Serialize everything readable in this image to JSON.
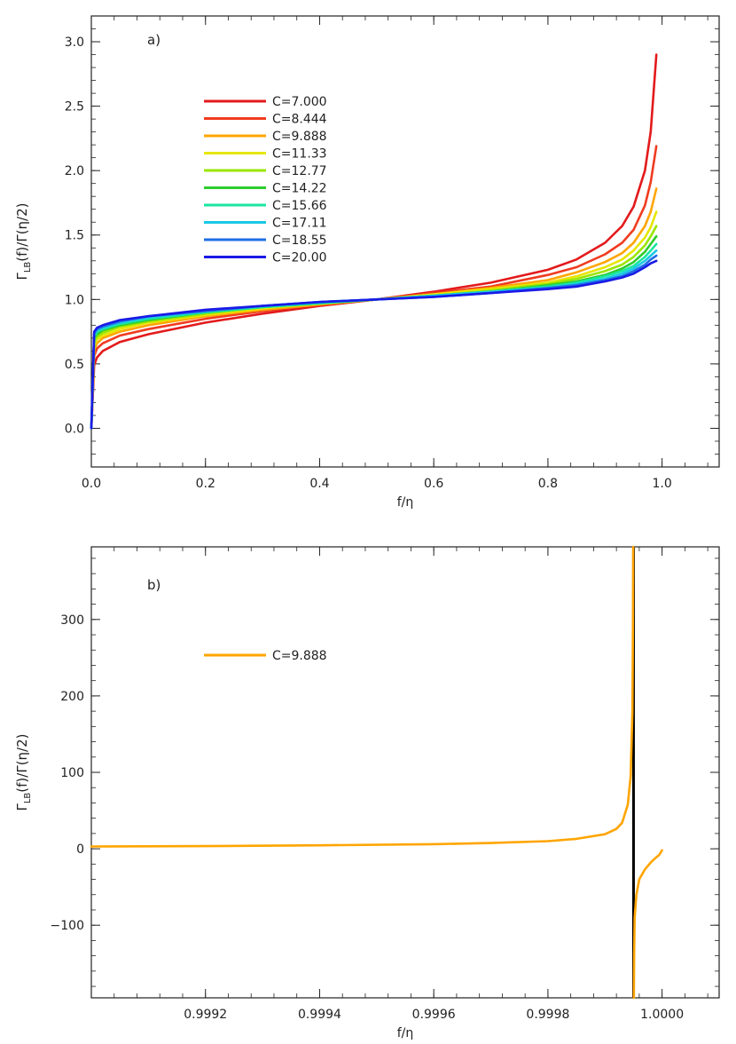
{
  "chart_data": [
    {
      "type": "line",
      "panel_label": "a)",
      "xlabel": "f/η",
      "ylabel_main": "Γ",
      "ylabel_sub": "LB",
      "ylabel_rest": "(f)/Γ(η/2)",
      "xlim": [
        0.0,
        1.1
      ],
      "ylim": [
        -0.3,
        3.2
      ],
      "x_ticks": [
        0.0,
        0.2,
        0.4,
        0.6,
        0.8,
        1.0
      ],
      "x_tick_labels": [
        "0.0",
        "0.2",
        "0.4",
        "0.6",
        "0.8",
        "1.0"
      ],
      "y_ticks": [
        0.0,
        0.5,
        1.0,
        1.5,
        2.0,
        2.5,
        3.0
      ],
      "y_tick_labels": [
        "0.0",
        "0.5",
        "1.0",
        "1.5",
        "2.0",
        "2.5",
        "3.0"
      ],
      "grid": false,
      "legend_position": "upper-left",
      "series": [
        {
          "name": "C=7.000",
          "color": "#e31a1c",
          "x": [
            0.0,
            0.005,
            0.01,
            0.02,
            0.05,
            0.1,
            0.2,
            0.3,
            0.4,
            0.5,
            0.6,
            0.7,
            0.8,
            0.85,
            0.9,
            0.93,
            0.95,
            0.97,
            0.98,
            0.99
          ],
          "values": [
            0.0,
            0.49,
            0.55,
            0.6,
            0.67,
            0.73,
            0.82,
            0.89,
            0.95,
            1.0,
            1.06,
            1.13,
            1.23,
            1.31,
            1.44,
            1.57,
            1.72,
            2.0,
            2.3,
            2.9
          ]
        },
        {
          "name": "C=8.444",
          "color": "#f03b20",
          "x": [
            0.0,
            0.005,
            0.01,
            0.02,
            0.05,
            0.1,
            0.2,
            0.3,
            0.4,
            0.5,
            0.6,
            0.7,
            0.8,
            0.85,
            0.9,
            0.93,
            0.95,
            0.97,
            0.98,
            0.99
          ],
          "values": [
            0.0,
            0.56,
            0.62,
            0.66,
            0.72,
            0.77,
            0.85,
            0.91,
            0.96,
            1.0,
            1.05,
            1.1,
            1.19,
            1.25,
            1.35,
            1.44,
            1.54,
            1.73,
            1.91,
            2.19
          ]
        },
        {
          "name": "C=9.888",
          "color": "#ffa500",
          "x": [
            0.0,
            0.005,
            0.01,
            0.02,
            0.05,
            0.1,
            0.2,
            0.3,
            0.4,
            0.5,
            0.6,
            0.7,
            0.8,
            0.85,
            0.9,
            0.93,
            0.95,
            0.97,
            0.98,
            0.99
          ],
          "values": [
            0.0,
            0.61,
            0.66,
            0.7,
            0.75,
            0.8,
            0.87,
            0.92,
            0.96,
            1.0,
            1.04,
            1.09,
            1.15,
            1.21,
            1.29,
            1.36,
            1.44,
            1.57,
            1.68,
            1.86
          ]
        },
        {
          "name": "C=11.33",
          "color": "#e6e600",
          "x": [
            0.0,
            0.005,
            0.01,
            0.02,
            0.05,
            0.1,
            0.2,
            0.3,
            0.4,
            0.5,
            0.6,
            0.7,
            0.8,
            0.85,
            0.9,
            0.93,
            0.95,
            0.97,
            0.98,
            0.99
          ],
          "values": [
            0.0,
            0.64,
            0.69,
            0.72,
            0.77,
            0.82,
            0.88,
            0.93,
            0.97,
            1.0,
            1.04,
            1.08,
            1.13,
            1.18,
            1.25,
            1.31,
            1.38,
            1.48,
            1.56,
            1.68
          ]
        },
        {
          "name": "C=12.77",
          "color": "#9ae600",
          "x": [
            0.0,
            0.005,
            0.01,
            0.02,
            0.05,
            0.1,
            0.2,
            0.3,
            0.4,
            0.5,
            0.6,
            0.7,
            0.8,
            0.85,
            0.9,
            0.93,
            0.95,
            0.97,
            0.98,
            0.99
          ],
          "values": [
            0.0,
            0.67,
            0.71,
            0.74,
            0.79,
            0.83,
            0.89,
            0.94,
            0.97,
            1.0,
            1.03,
            1.07,
            1.12,
            1.16,
            1.22,
            1.27,
            1.33,
            1.42,
            1.49,
            1.57
          ]
        },
        {
          "name": "C=14.22",
          "color": "#2ecc2e",
          "x": [
            0.0,
            0.005,
            0.01,
            0.02,
            0.05,
            0.1,
            0.2,
            0.3,
            0.4,
            0.5,
            0.6,
            0.7,
            0.8,
            0.85,
            0.9,
            0.93,
            0.95,
            0.97,
            0.98,
            0.99
          ],
          "values": [
            0.0,
            0.7,
            0.73,
            0.76,
            0.8,
            0.84,
            0.9,
            0.94,
            0.97,
            1.0,
            1.03,
            1.06,
            1.11,
            1.14,
            1.19,
            1.24,
            1.29,
            1.37,
            1.43,
            1.49
          ]
        },
        {
          "name": "C=15.66",
          "color": "#19e6a0",
          "x": [
            0.0,
            0.005,
            0.01,
            0.02,
            0.05,
            0.1,
            0.2,
            0.3,
            0.4,
            0.5,
            0.6,
            0.7,
            0.8,
            0.85,
            0.9,
            0.93,
            0.95,
            0.97,
            0.98,
            0.99
          ],
          "values": [
            0.0,
            0.71,
            0.75,
            0.77,
            0.81,
            0.85,
            0.9,
            0.94,
            0.97,
            1.0,
            1.03,
            1.06,
            1.1,
            1.13,
            1.18,
            1.22,
            1.26,
            1.33,
            1.38,
            1.43
          ]
        },
        {
          "name": "C=17.11",
          "color": "#19c8e6",
          "x": [
            0.0,
            0.005,
            0.01,
            0.02,
            0.05,
            0.1,
            0.2,
            0.3,
            0.4,
            0.5,
            0.6,
            0.7,
            0.8,
            0.85,
            0.9,
            0.93,
            0.95,
            0.97,
            0.98,
            0.99
          ],
          "values": [
            0.0,
            0.73,
            0.76,
            0.78,
            0.82,
            0.86,
            0.91,
            0.95,
            0.98,
            1.0,
            1.03,
            1.06,
            1.09,
            1.12,
            1.16,
            1.2,
            1.24,
            1.3,
            1.34,
            1.38
          ]
        },
        {
          "name": "C=18.55",
          "color": "#1e6ee6",
          "x": [
            0.0,
            0.005,
            0.01,
            0.02,
            0.05,
            0.1,
            0.2,
            0.3,
            0.4,
            0.5,
            0.6,
            0.7,
            0.8,
            0.85,
            0.9,
            0.93,
            0.95,
            0.97,
            0.98,
            0.99
          ],
          "values": [
            0.0,
            0.74,
            0.77,
            0.79,
            0.83,
            0.87,
            0.91,
            0.95,
            0.98,
            1.0,
            1.02,
            1.05,
            1.09,
            1.11,
            1.15,
            1.18,
            1.22,
            1.27,
            1.31,
            1.34
          ]
        },
        {
          "name": "C=20.00",
          "color": "#1a1ae6",
          "x": [
            0.0,
            0.005,
            0.01,
            0.02,
            0.05,
            0.1,
            0.2,
            0.3,
            0.4,
            0.5,
            0.6,
            0.7,
            0.8,
            0.85,
            0.9,
            0.93,
            0.95,
            0.97,
            0.98,
            0.99
          ],
          "values": [
            0.0,
            0.75,
            0.78,
            0.8,
            0.84,
            0.87,
            0.92,
            0.95,
            0.98,
            1.0,
            1.02,
            1.05,
            1.08,
            1.1,
            1.14,
            1.17,
            1.2,
            1.25,
            1.28,
            1.3
          ]
        }
      ]
    },
    {
      "type": "line",
      "panel_label": "b)",
      "xlabel": "f/η",
      "ylabel_main": "Γ",
      "ylabel_sub": "LB",
      "ylabel_rest": "(f)/Γ(η/2)",
      "xlim": [
        0.999,
        1.0001
      ],
      "ylim": [
        -195,
        395
      ],
      "x_ticks": [
        0.9992,
        0.9994,
        0.9996,
        0.9998,
        1.0
      ],
      "x_tick_labels": [
        "0.9992",
        "0.9994",
        "0.9996",
        "0.9998",
        "1.0000"
      ],
      "y_ticks": [
        -100,
        0,
        100,
        200,
        300
      ],
      "y_tick_labels": [
        "−100",
        "0",
        "100",
        "200",
        "300"
      ],
      "grid": false,
      "legend_position": "upper-left",
      "vertical_line_x": 0.99995,
      "vertical_line_color": "#000000",
      "series": [
        {
          "name": "C=9.888",
          "color": "#ffa500",
          "segments": [
            {
              "x": [
                0.999,
                0.9992,
                0.9994,
                0.9996,
                0.9997,
                0.9998,
                0.99985,
                0.9999,
                0.99992,
                0.99993,
                0.99994,
                0.999945,
                0.999948,
                0.999949,
                0.9999495
              ],
              "values": [
                3,
                3.5,
                4.5,
                6,
                7.5,
                10,
                13,
                19,
                26,
                34,
                58,
                95,
                180,
                290,
                395
              ]
            },
            {
              "x": [
                0.9999505,
                0.999951,
                0.999952,
                0.999955,
                0.99996,
                0.99997,
                0.99998,
                0.99999,
                0.999995,
                1.0
              ],
              "values": [
                -195,
                -140,
                -90,
                -60,
                -40,
                -27,
                -18,
                -11,
                -8,
                -2
              ]
            }
          ]
        }
      ]
    }
  ]
}
